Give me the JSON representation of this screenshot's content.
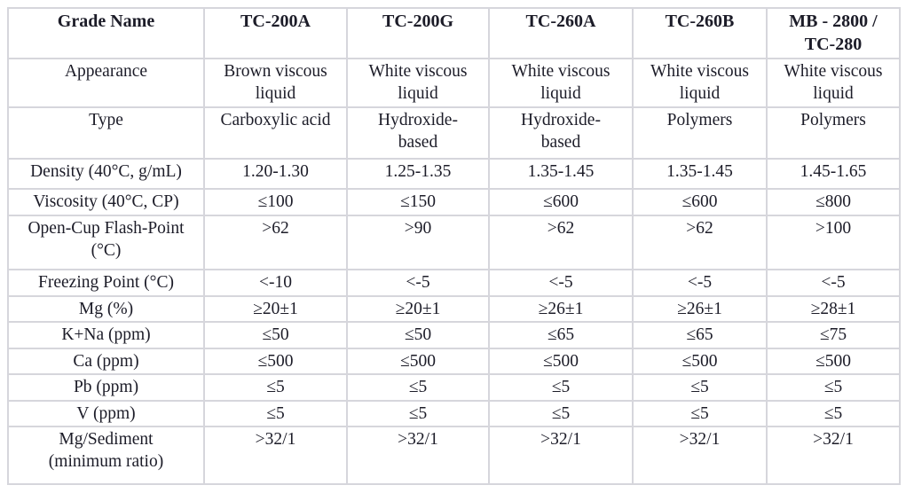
{
  "table": {
    "name": "grade-specification-table",
    "header": [
      "Grade Name",
      "TC-200A",
      "TC-200G",
      "TC-260A",
      "TC-260B",
      "MB - 2800 /\nTC-280"
    ],
    "rows": [
      {
        "label": "Appearance",
        "values": [
          "Brown viscous\nliquid",
          "White viscous\nliquid",
          "White viscous\nliquid",
          "White viscous\nliquid",
          "White viscous\nliquid"
        ]
      },
      {
        "label": "Type",
        "values": [
          "Carboxylic acid",
          "Hydroxide-\nbased",
          "Hydroxide-\nbased",
          "Polymers",
          "Polymers"
        ]
      },
      {
        "label": "Density (40°C, g/mL)",
        "values": [
          "1.20-1.30",
          "1.25-1.35",
          "1.35-1.45",
          "1.35-1.45",
          "1.45-1.65"
        ]
      },
      {
        "label": "Viscosity (40°C, CP)",
        "values": [
          "≤100",
          "≤150",
          "≤600",
          "≤600",
          "≤800"
        ]
      },
      {
        "label": "Open-Cup Flash-Point\n(°C)",
        "values": [
          ">62",
          ">90",
          ">62",
          ">62",
          ">100"
        ]
      },
      {
        "label": "Freezing Point (°C)",
        "values": [
          "<-10",
          "<-5",
          "<-5",
          "<-5",
          "<-5"
        ]
      },
      {
        "label": "Mg (%)",
        "values": [
          "≥20±1",
          "≥20±1",
          "≥26±1",
          "≥26±1",
          "≥28±1"
        ]
      },
      {
        "label": "K+Na (ppm)",
        "values": [
          "≤50",
          "≤50",
          "≤65",
          "≤65",
          "≤75"
        ]
      },
      {
        "label": "Ca (ppm)",
        "values": [
          "≤500",
          "≤500",
          "≤500",
          "≤500",
          "≤500"
        ]
      },
      {
        "label": "Pb (ppm)",
        "values": [
          "≤5",
          "≤5",
          "≤5",
          "≤5",
          "≤5"
        ]
      },
      {
        "label": "V (ppm)",
        "values": [
          "≤5",
          "≤5",
          "≤5",
          "≤5",
          "≤5"
        ]
      },
      {
        "label": "Mg/Sediment\n(minimum ratio)",
        "values": [
          ">32/1",
          ">32/1",
          ">32/1",
          ">32/1",
          ">32/1"
        ]
      }
    ]
  }
}
